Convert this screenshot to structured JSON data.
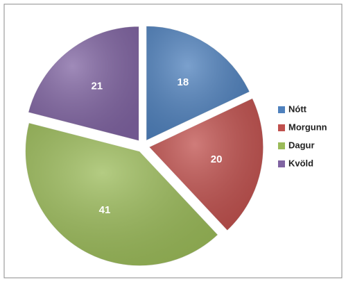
{
  "chart_data": {
    "type": "pie",
    "categories": [
      "Nótt",
      "Morgunn",
      "Dagur",
      "Kvöld"
    ],
    "values": [
      18,
      20,
      41,
      21
    ],
    "colors": [
      "#4f81bd",
      "#c0504d",
      "#9bbb59",
      "#8064a2"
    ],
    "legend": "right"
  }
}
